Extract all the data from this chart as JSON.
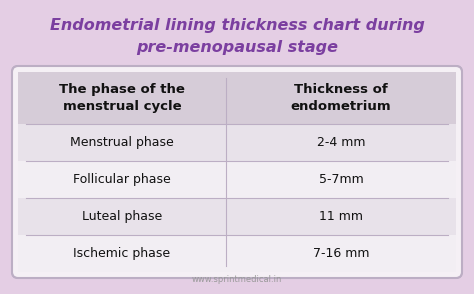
{
  "title_line1": "Endometrial lining thickness chart during",
  "title_line2": "pre-menopausal stage",
  "title_color": "#7b3fa0",
  "background_color": "#e4cee4",
  "table_bg_light": "#f5f0f5",
  "header_bg": "#d6ccd8",
  "row_bg_odd": "#e8e2ea",
  "row_bg_even": "#f2eef3",
  "divider_color": "#bcaec4",
  "col1_header": "The phase of the\nmenstrual cycle",
  "col2_header": "Thickness of\nendometrium",
  "phases": [
    "Menstrual phase",
    "Follicular phase",
    "Luteal phase",
    "Ischemic phase"
  ],
  "thicknesses": [
    "2-4 mm",
    "5-7mm",
    "11 mm",
    "7-16 mm"
  ],
  "footer": "www.sprintmedical.in",
  "title_fontsize": 11.5,
  "header_fontsize": 9.5,
  "data_fontsize": 9,
  "footer_fontsize": 6
}
